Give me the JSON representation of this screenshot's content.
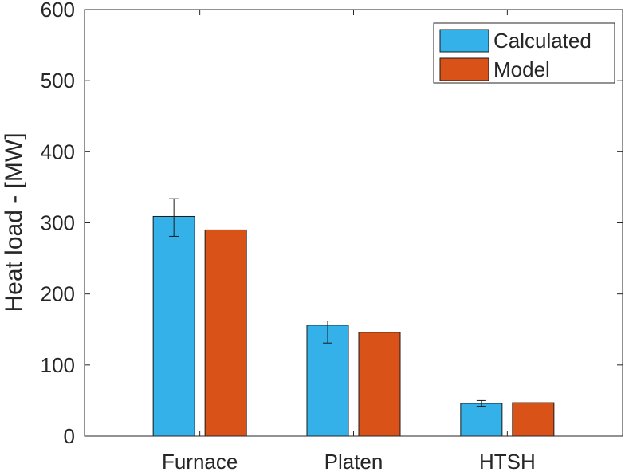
{
  "chart_data": {
    "type": "bar",
    "title": "",
    "xlabel": "",
    "ylabel": "Heat load - [MW]",
    "ylim": [
      0,
      600
    ],
    "yticks": [
      0,
      100,
      200,
      300,
      400,
      500,
      600
    ],
    "categories": [
      "Furnace",
      "Platen",
      "HTSH"
    ],
    "series": [
      {
        "name": "Calculated",
        "color": "#33b1e8",
        "values": [
          309,
          156,
          46
        ],
        "error_low": [
          281,
          131,
          42
        ],
        "error_high": [
          334,
          162,
          50
        ]
      },
      {
        "name": "Model",
        "color": "#d95319",
        "values": [
          290,
          146,
          47
        ]
      }
    ],
    "grid": false,
    "legend_position": "top-right"
  }
}
